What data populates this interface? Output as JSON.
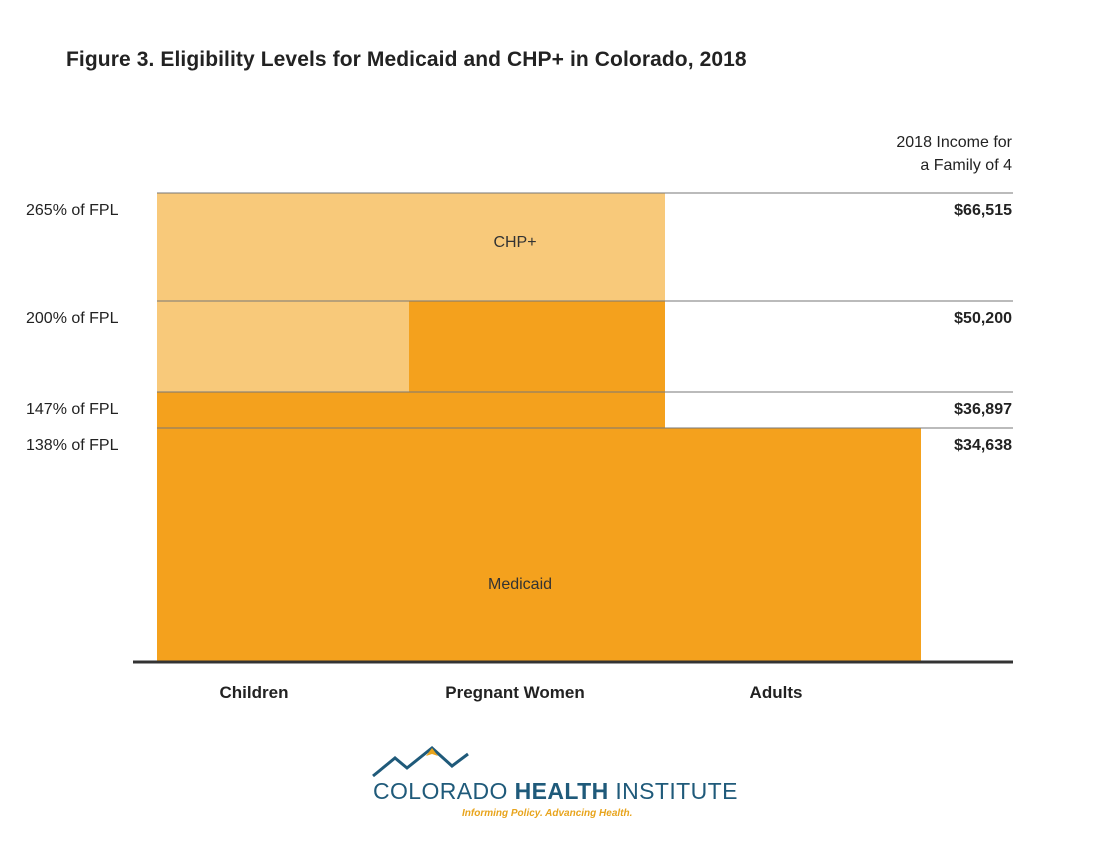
{
  "title": "Figure 3. Eligibility Levels for Medicaid and CHP+ in Colorado, 2018",
  "colors": {
    "medicaid": "#f4a11d",
    "chp": "#f8c97a",
    "gridline": "#777777",
    "axis": "#333333"
  },
  "chart_data": {
    "type": "bar",
    "categories": [
      "Children",
      "Pregnant Women",
      "Adults"
    ],
    "right_axis_title_lines": [
      "2018 Income for",
      "a Family of 4"
    ],
    "levels": [
      {
        "fpl_percent": 265,
        "label": "265% of FPL",
        "income": "$66,515"
      },
      {
        "fpl_percent": 200,
        "label": "200% of FPL",
        "income": "$50,200"
      },
      {
        "fpl_percent": 147,
        "label": "147% of FPL",
        "income": "$36,897"
      },
      {
        "fpl_percent": 138,
        "label": "138% of FPL",
        "income": "$34,638"
      }
    ],
    "series": [
      {
        "name": "Medicaid",
        "values": [
          147,
          200,
          138
        ]
      },
      {
        "name": "CHP+",
        "values": [
          265,
          265,
          0
        ]
      }
    ],
    "series_labels": [
      {
        "text": "CHP+",
        "series": "CHP+"
      },
      {
        "text": "Medicaid",
        "series": "Medicaid"
      }
    ]
  },
  "logo": {
    "name_regular_1": "COLORADO ",
    "name_bold": "HEALTH",
    "name_regular_2": " INSTITUTE",
    "tagline": "Informing Policy. Advancing Health."
  }
}
